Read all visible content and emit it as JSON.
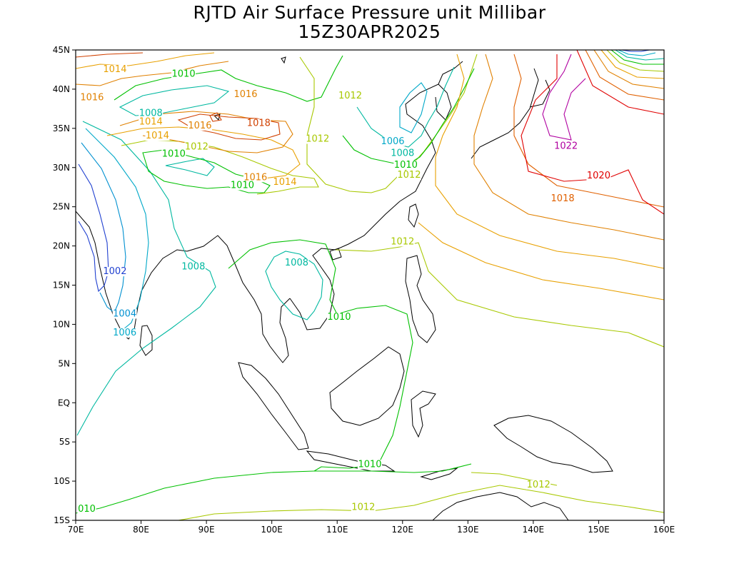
{
  "title": {
    "line1": "RJTD Air Surface Pressure unit Millibar",
    "line2": "15Z30APR2025"
  },
  "map": {
    "lon_range": [
      70,
      160
    ],
    "lat_range": [
      -15,
      45
    ],
    "lon_ticks": [
      "70E",
      "80E",
      "90E",
      "100E",
      "110E",
      "120E",
      "130E",
      "140E",
      "150E",
      "160E"
    ],
    "lat_ticks": [
      "45N",
      "40N",
      "35N",
      "30N",
      "25N",
      "20N",
      "15N",
      "10N",
      "5N",
      "EQ",
      "5S",
      "10S",
      "15S"
    ]
  },
  "contour_labels": [
    {
      "text": "1014",
      "lon": 76,
      "lat": 42.2,
      "color": "#e8a000"
    },
    {
      "text": "1010",
      "lon": 86.5,
      "lat": 41.6,
      "color": "#00c000"
    },
    {
      "text": "1016",
      "lon": 72.5,
      "lat": 38.6,
      "color": "#e08000"
    },
    {
      "text": "1016",
      "lon": 96,
      "lat": 39.0,
      "color": "#e08000"
    },
    {
      "text": "1012",
      "lon": 112,
      "lat": 38.8,
      "color": "#a8c800"
    },
    {
      "text": "1008",
      "lon": 81.5,
      "lat": 36.6,
      "color": "#00b8a0"
    },
    {
      "text": "1014",
      "lon": 81.5,
      "lat": 35.5,
      "color": "#e8a000"
    },
    {
      "text": "1016",
      "lon": 89,
      "lat": 35.0,
      "color": "#e08000"
    },
    {
      "text": "1018",
      "lon": 98,
      "lat": 35.3,
      "color": "#d04000"
    },
    {
      "text": "1014",
      "lon": 82.5,
      "lat": 33.7,
      "color": "#e8a000"
    },
    {
      "text": "1012",
      "lon": 88.5,
      "lat": 32.3,
      "color": "#a8c800"
    },
    {
      "text": "1012",
      "lon": 107,
      "lat": 33.3,
      "color": "#a8c800"
    },
    {
      "text": "1006",
      "lon": 118.5,
      "lat": 33.0,
      "color": "#00a8c8"
    },
    {
      "text": "1010",
      "lon": 85,
      "lat": 31.4,
      "color": "#00c000"
    },
    {
      "text": "1008",
      "lon": 120,
      "lat": 31.5,
      "color": "#00b8a0"
    },
    {
      "text": "1010",
      "lon": 120.5,
      "lat": 30.0,
      "color": "#00c000"
    },
    {
      "text": "1012",
      "lon": 121,
      "lat": 28.7,
      "color": "#a8c800"
    },
    {
      "text": "1022",
      "lon": 145,
      "lat": 32.4,
      "color": "#b000a0"
    },
    {
      "text": "1016",
      "lon": 97.5,
      "lat": 28.4,
      "color": "#e08000"
    },
    {
      "text": "1014",
      "lon": 102,
      "lat": 27.8,
      "color": "#e8a000"
    },
    {
      "text": "1010",
      "lon": 95.5,
      "lat": 27.4,
      "color": "#00c000"
    },
    {
      "text": "1020",
      "lon": 150,
      "lat": 28.6,
      "color": "#e00000"
    },
    {
      "text": "1018",
      "lon": 144.5,
      "lat": 25.7,
      "color": "#e06000"
    },
    {
      "text": "1012",
      "lon": 120,
      "lat": 20.2,
      "color": "#a8c800"
    },
    {
      "text": "1002",
      "lon": 76,
      "lat": 16.4,
      "color": "#2040d0"
    },
    {
      "text": "1008",
      "lon": 88,
      "lat": 17.0,
      "color": "#00b8a0"
    },
    {
      "text": "1008",
      "lon": 103.8,
      "lat": 17.5,
      "color": "#00b8a0"
    },
    {
      "text": "1004",
      "lon": 77.5,
      "lat": 11.0,
      "color": "#0090d0"
    },
    {
      "text": "1010",
      "lon": 110.3,
      "lat": 10.6,
      "color": "#00c000"
    },
    {
      "text": "1006",
      "lon": 77.5,
      "lat": 8.6,
      "color": "#00a8c8"
    },
    {
      "text": "1010",
      "lon": 115,
      "lat": -8.2,
      "color": "#00c000"
    },
    {
      "text": "1012",
      "lon": 140.8,
      "lat": -10.8,
      "color": "#a8c800"
    },
    {
      "text": "1012",
      "lon": 114,
      "lat": -13.7,
      "color": "#a8c800"
    },
    {
      "text": "010",
      "lon": 71.7,
      "lat": -13.9,
      "color": "#00c000"
    }
  ],
  "colors": {
    "p1002": "#2040d0",
    "p1004": "#0090d0",
    "p1006": "#00a8c8",
    "p1008": "#00b8a0",
    "p1010": "#00c000",
    "p1012": "#a8c800",
    "p1014": "#e8a000",
    "p1016": "#e08000",
    "p1018": "#e06000",
    "p1020": "#e00000",
    "p1022": "#b000a0"
  }
}
